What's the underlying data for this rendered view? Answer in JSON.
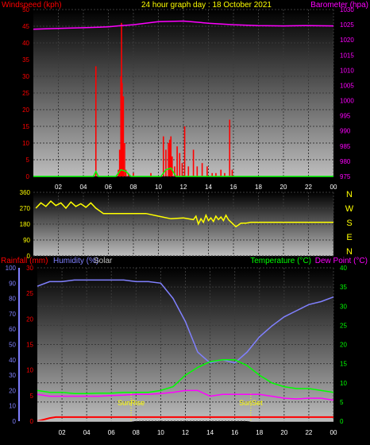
{
  "title": "24 hour graph day : 18 October 2021",
  "colors": {
    "wind": "#ff0000",
    "wind_gust": "#ff2020",
    "wind_avg": "#00ff00",
    "baro": "#ff00ff",
    "dir": "#ffff00",
    "rain": "#ff0000",
    "humidity": "#8080ff",
    "temp": "#00ff00",
    "dew": "#ff00ff",
    "solar": "#c0c0c0",
    "sun_markers": "#ffff00"
  },
  "x_ticks": [
    "02",
    "04",
    "06",
    "08",
    "10",
    "12",
    "14",
    "16",
    "18",
    "20",
    "22",
    "00"
  ],
  "charts": {
    "wind": {
      "left_label": "Windspeed (kph)",
      "right_label": "Barometer (hpa)",
      "left_ticks": [
        "0",
        "5",
        "10",
        "15",
        "20",
        "25",
        "30",
        "35",
        "40",
        "45",
        "50"
      ],
      "right_ticks": [
        "975",
        "980",
        "985",
        "990",
        "995",
        "1000",
        "1005",
        "1010",
        "1015",
        "1020",
        "1025",
        "1030"
      ]
    },
    "dir": {
      "left_ticks": [
        "0",
        "90",
        "180",
        "270",
        "360"
      ],
      "compass": [
        "N",
        "W",
        "S",
        "E",
        "N"
      ]
    },
    "temp": {
      "rain_label": "Rainfall (mm)",
      "hum_label": "Humidity (%)",
      "solar_label": "Solar",
      "temp_label": "Temperature (°C)",
      "dew_label": "Dew Point (°C)",
      "rain_ticks": [
        "0",
        "5",
        "10",
        "15",
        "20",
        "25",
        "30"
      ],
      "hum_ticks": [
        "0",
        "10",
        "20",
        "30",
        "40",
        "50",
        "60",
        "70",
        "80",
        "90",
        "100"
      ],
      "temp_ticks": [
        "0",
        "5",
        "10",
        "15",
        "20",
        "25",
        "30",
        "35",
        "40"
      ],
      "sunrise_label": "SunRise",
      "sunset_label": "SunSet"
    }
  },
  "chart_data": [
    {
      "type": "bar",
      "title": "24 hour graph day : 18 October 2021",
      "xlabel": "",
      "ylabel": "Windspeed (kph)",
      "ylim": [
        0,
        50
      ],
      "y2label": "Barometer (hpa)",
      "y2lim": [
        975,
        1030
      ],
      "x_hours_range": [
        0,
        24
      ],
      "series": [
        {
          "name": "Windspeed (kph)",
          "kind": "bar",
          "x": [
            5.0,
            6.8,
            6.9,
            7.0,
            7.05,
            7.1,
            7.15,
            7.2,
            7.3,
            7.4,
            7.6,
            8.0,
            9.4,
            10.4,
            10.6,
            10.8,
            10.9,
            11.0,
            11.1,
            11.3,
            11.5,
            11.7,
            11.9,
            12.1,
            12.4,
            12.8,
            13.1,
            13.5,
            13.9,
            14.3,
            14.6,
            15.0,
            15.3,
            15.7,
            15.9
          ],
          "values": [
            33,
            2,
            8,
            30,
            46,
            28,
            22,
            24,
            10,
            2,
            1,
            1,
            1,
            12,
            8,
            10,
            11,
            12,
            6,
            3,
            9,
            7,
            4,
            15,
            3,
            8,
            3,
            4,
            3,
            1,
            1,
            2,
            1,
            17,
            2
          ]
        },
        {
          "name": "Wind average",
          "kind": "line",
          "x": [
            0,
            4.8,
            5.0,
            5.2,
            6.6,
            7.0,
            7.4,
            7.8,
            10.2,
            10.6,
            11.0,
            11.4,
            24
          ],
          "values": [
            0,
            0,
            1.5,
            0,
            0,
            2,
            1.5,
            0,
            0,
            2,
            2.5,
            0,
            0
          ]
        },
        {
          "name": "Barometer (hpa)",
          "kind": "line",
          "axis": "right",
          "x": [
            0,
            2,
            4,
            6,
            7,
            8,
            10,
            12,
            14,
            16,
            18,
            20,
            22,
            24
          ],
          "values": [
            1023.5,
            1023.8,
            1024,
            1024.3,
            1024.7,
            1025,
            1026,
            1026.2,
            1025.5,
            1025,
            1024.7,
            1024.6,
            1024.7,
            1024.6
          ]
        }
      ]
    },
    {
      "type": "line",
      "title": "",
      "ylabel": "Wind direction",
      "ylim": [
        0,
        360
      ],
      "x_hours_range": [
        0,
        24
      ],
      "series": [
        {
          "name": "Wind direction",
          "x": [
            0.2,
            0.6,
            1.0,
            1.4,
            1.8,
            2.2,
            2.6,
            3.0,
            3.4,
            3.8,
            4.2,
            4.6,
            5.0,
            5.6,
            6,
            8,
            9,
            10,
            11,
            12,
            12.8,
            13,
            13.2,
            13.4,
            13.6,
            13.8,
            14,
            14.2,
            14.4,
            14.6,
            14.8,
            15,
            15.2,
            15.4,
            15.6,
            16.2,
            16.6,
            17,
            17.4,
            24
          ],
          "values": [
            270,
            300,
            280,
            310,
            285,
            300,
            270,
            305,
            280,
            295,
            275,
            300,
            270,
            240,
            240,
            240,
            240,
            225,
            210,
            215,
            205,
            225,
            180,
            210,
            190,
            230,
            200,
            215,
            195,
            225,
            205,
            220,
            200,
            230,
            205,
            165,
            185,
            185,
            190,
            190
          ]
        }
      ]
    },
    {
      "type": "line",
      "title": "",
      "ylabel": "Temperature (°C)",
      "ylim": [
        0,
        40
      ],
      "y_left_rain_lim": [
        0,
        30
      ],
      "y_left_humidity_lim": [
        0,
        100
      ],
      "x_hours_range": [
        0,
        24
      ],
      "sunrise_hour": 7.6,
      "sunset_hour": 17.3,
      "series": [
        {
          "name": "Humidity (%)",
          "axis": "humidity",
          "x": [
            0,
            1,
            2,
            3,
            4,
            5,
            6,
            7,
            8,
            9,
            10,
            11,
            12,
            13,
            14,
            15,
            16,
            17,
            18,
            19,
            20,
            21,
            22,
            23,
            24
          ],
          "values": [
            88,
            91,
            91,
            92,
            92,
            92,
            92,
            92,
            91,
            91,
            90,
            80,
            65,
            45,
            38,
            40,
            38,
            45,
            55,
            62,
            68,
            72,
            76,
            78,
            81
          ]
        },
        {
          "name": "Temperature (°C)",
          "axis": "temp",
          "x": [
            0,
            1,
            2,
            3,
            4,
            5,
            6,
            7,
            8,
            9,
            10,
            11,
            12,
            13,
            14,
            15,
            16,
            17,
            18,
            19,
            20,
            21,
            22,
            23,
            24
          ],
          "values": [
            8,
            7.5,
            7.5,
            7.2,
            7.2,
            7.3,
            7.3,
            7.5,
            7.5,
            7.5,
            8,
            9,
            12,
            14,
            15.5,
            16,
            16,
            14.5,
            12,
            10,
            9,
            8.5,
            8.5,
            8,
            7.5
          ]
        },
        {
          "name": "Dew Point (°C)",
          "axis": "temp",
          "x": [
            0,
            1,
            2,
            3,
            4,
            5,
            6,
            7,
            8,
            9,
            10,
            11,
            12,
            13,
            14,
            15,
            16,
            17,
            18,
            19,
            20,
            21,
            22,
            23,
            24
          ],
          "values": [
            7,
            6.5,
            6.5,
            6.5,
            6.5,
            6.5,
            6.7,
            6.8,
            7,
            7,
            7.2,
            7.5,
            8,
            8,
            6.5,
            7,
            7,
            7,
            7,
            6.5,
            6,
            5.8,
            6,
            6,
            5.5
          ]
        },
        {
          "name": "Rainfall (mm)",
          "axis": "rain",
          "x": [
            0,
            0.5,
            1,
            1.5,
            24
          ],
          "values": [
            0,
            0.3,
            0.6,
            0.8,
            0.8
          ]
        },
        {
          "name": "Solar",
          "axis": "temp",
          "x": [
            0,
            7.6,
            8,
            10,
            12,
            14,
            16,
            17,
            17.3,
            24
          ],
          "values": [
            0,
            0,
            0.2,
            0.4,
            0.5,
            0.5,
            0.4,
            0.2,
            0,
            0
          ]
        }
      ]
    }
  ]
}
